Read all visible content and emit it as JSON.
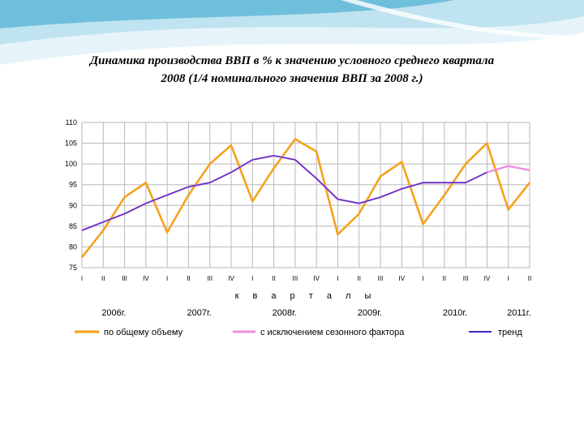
{
  "title": {
    "line1": "Динамика производства ВВП в % к значению условного среднего квартала",
    "line2": "2008  (1/4 номинального значения ВВП за 2008 г.)"
  },
  "colors": {
    "background": "#ffffff",
    "swoosh_dark": "#5fb8d8",
    "swoosh_light": "#bfe3f0",
    "grid": "#b8b8b8",
    "total": "#f5a21b",
    "seasonal": "#f08ce0",
    "trend": "#3a2cc0"
  },
  "chart_data": {
    "type": "line",
    "title": "",
    "xlabel": "к в а р т а л ы",
    "ylabel": "",
    "ylim": [
      75,
      110
    ],
    "yticks": [
      75,
      80,
      85,
      90,
      95,
      100,
      105,
      110
    ],
    "grid": true,
    "legend_position": "bottom",
    "categories": [
      "I",
      "II",
      "III",
      "IV",
      "I",
      "II",
      "III",
      "IV",
      "I",
      "II",
      "III",
      "IV",
      "I",
      "II",
      "III",
      "IV",
      "I",
      "II",
      "III",
      "IV",
      "I",
      "II"
    ],
    "years": [
      "2006г.",
      "2007г.",
      "2008г.",
      "2009г.",
      "2010г.",
      "2011г."
    ],
    "series": [
      {
        "name": "по общему объему",
        "values": [
          77.5,
          84,
          92,
          95.5,
          83.5,
          92.5,
          100,
          104.5,
          91,
          99,
          106,
          103,
          83,
          88,
          97,
          100.5,
          85.5,
          92.5,
          100,
          105,
          89,
          95.5
        ]
      },
      {
        "name": "с исключением сезонного фактора",
        "values": [
          84,
          86,
          88,
          90.5,
          92.5,
          94.5,
          95.5,
          98,
          101,
          102,
          101,
          96.5,
          91.5,
          90.5,
          92,
          94,
          95.5,
          95.5,
          95.5,
          98,
          99.5,
          98.5
        ]
      },
      {
        "name": "тренд",
        "values": [
          84,
          86,
          88,
          90.5,
          92.5,
          94.5,
          95.5,
          98,
          101,
          102,
          101,
          96.5,
          91.5,
          90.5,
          92,
          94,
          95.5,
          95.5,
          95.5,
          98,
          null,
          null
        ]
      }
    ]
  }
}
